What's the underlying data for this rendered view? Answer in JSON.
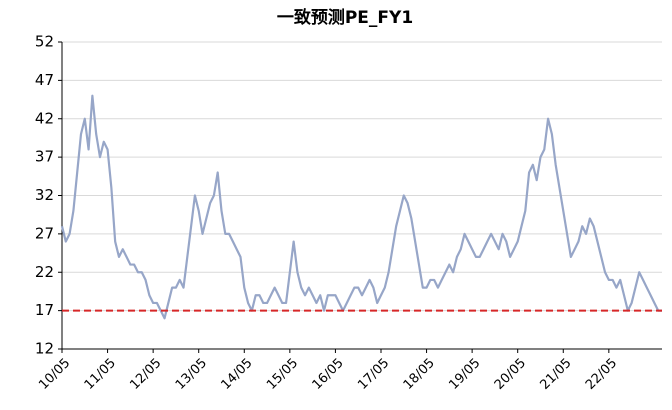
{
  "chart_data": {
    "type": "line",
    "title": "一致预测PE_FY1",
    "categories": [
      "10/05",
      null,
      null,
      null,
      null,
      null,
      null,
      null,
      null,
      null,
      null,
      null,
      "11/05",
      null,
      null,
      null,
      null,
      null,
      null,
      null,
      null,
      null,
      null,
      null,
      "12/05",
      null,
      null,
      null,
      null,
      null,
      null,
      null,
      null,
      null,
      null,
      null,
      "13/05",
      null,
      null,
      null,
      null,
      null,
      null,
      null,
      null,
      null,
      null,
      null,
      "14/05",
      null,
      null,
      null,
      null,
      null,
      null,
      null,
      null,
      null,
      null,
      null,
      "15/05",
      null,
      null,
      null,
      null,
      null,
      null,
      null,
      null,
      null,
      null,
      null,
      "16/05",
      null,
      null,
      null,
      null,
      null,
      null,
      null,
      null,
      null,
      null,
      null,
      "17/05",
      null,
      null,
      null,
      null,
      null,
      null,
      null,
      null,
      null,
      null,
      null,
      "18/05",
      null,
      null,
      null,
      null,
      null,
      null,
      null,
      null,
      null,
      null,
      null,
      "19/05",
      null,
      null,
      null,
      null,
      null,
      null,
      null,
      null,
      null,
      null,
      null,
      "20/05",
      null,
      null,
      null,
      null,
      null,
      null,
      null,
      null,
      null,
      null,
      null,
      "21/05",
      null,
      null,
      null,
      null,
      null,
      null,
      null,
      null,
      null,
      null,
      null,
      "22/05",
      null,
      null,
      null,
      null,
      null,
      null,
      null,
      null,
      null,
      null,
      null,
      null,
      null,
      null
    ],
    "series": [
      {
        "name": "一致预测PE_FY1",
        "color": "#97a6c8",
        "values": [
          28,
          26,
          27,
          30,
          35,
          40,
          42,
          38,
          45,
          40,
          37,
          39,
          38,
          33,
          26,
          24,
          25,
          24,
          23,
          23,
          22,
          22,
          21,
          19,
          18,
          18,
          17,
          16,
          18,
          20,
          20,
          21,
          20,
          24,
          28,
          32,
          30,
          27,
          29,
          31,
          32,
          35,
          30,
          27,
          27,
          26,
          25,
          24,
          20,
          18,
          17,
          19,
          19,
          18,
          18,
          19,
          20,
          19,
          18,
          18,
          22,
          26,
          22,
          20,
          19,
          20,
          19,
          18,
          19,
          17,
          19,
          19,
          19,
          18,
          17,
          18,
          19,
          20,
          20,
          19,
          20,
          21,
          20,
          18,
          19,
          20,
          22,
          25,
          28,
          30,
          32,
          31,
          29,
          26,
          23,
          20,
          20,
          21,
          21,
          20,
          21,
          22,
          23,
          22,
          24,
          25,
          27,
          26,
          25,
          24,
          24,
          25,
          26,
          27,
          26,
          25,
          27,
          26,
          24,
          25,
          26,
          28,
          30,
          35,
          36,
          34,
          37,
          38,
          42,
          40,
          36,
          33,
          30,
          27,
          24,
          25,
          26,
          28,
          27,
          29,
          28,
          26,
          24,
          22,
          21,
          21,
          20,
          21,
          19,
          17,
          18,
          20,
          22,
          21,
          20,
          19,
          18,
          17,
          17
        ]
      }
    ],
    "reference_line": {
      "value": 17,
      "color": "#d62728"
    },
    "ylim": [
      12,
      52
    ],
    "yticks": [
      12,
      17,
      22,
      27,
      32,
      37,
      42,
      47,
      52
    ],
    "grid": true
  }
}
